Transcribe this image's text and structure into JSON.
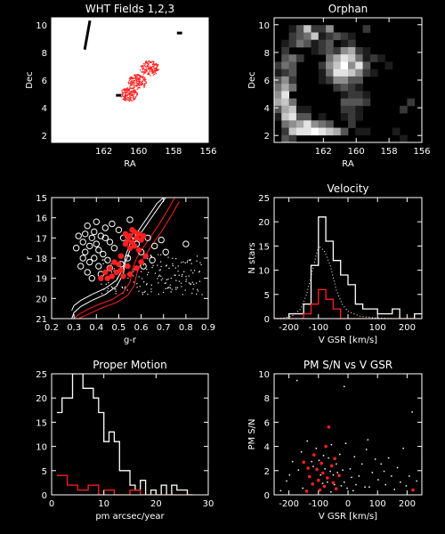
{
  "colors": {
    "bg": "#000000",
    "fg": "#ffffff",
    "accent": "#ff2020",
    "panel_bg": "#ffffff"
  },
  "chart_data": [
    {
      "id": "wht-fields",
      "type": "scatter",
      "title": "WHT Fields 1,2,3",
      "xlabel": "RA",
      "ylabel": "Dec",
      "xlim": [
        165,
        156
      ],
      "ylim": [
        1.5,
        10.5
      ],
      "xticks": [
        162,
        160,
        158,
        156
      ],
      "yticks": [
        2,
        4,
        6,
        8,
        10
      ],
      "panel": "white",
      "black_streaks": [
        [
          163.1,
          8.2,
          162.8,
          10.3
        ],
        [
          157.8,
          9.4,
          157.5,
          9.4
        ],
        [
          161.3,
          4.9,
          161.0,
          4.9
        ]
      ],
      "fields": [
        {
          "ra": 160.6,
          "dec": 5.0,
          "r": 0.5
        },
        {
          "ra": 160.1,
          "dec": 5.9,
          "r": 0.55
        },
        {
          "ra": 159.4,
          "dec": 6.9,
          "r": 0.55
        }
      ]
    },
    {
      "id": "orphan",
      "type": "heatmap",
      "title": "Orphan",
      "xlabel": "RA",
      "ylabel": "Dec",
      "xlim": [
        165,
        156
      ],
      "ylim": [
        1.5,
        10.5
      ],
      "xticks": [
        162,
        160,
        158,
        156
      ],
      "yticks": [
        2,
        4,
        6,
        8,
        10
      ],
      "rows": 17,
      "cols": 20,
      "grid": [
        "00000000000000000000",
        "00137225000020000000",
        "00234712321000000000",
        "01243123012000000000",
        "02000123256210000000",
        "03420004687412100000",
        "24300025795830010000",
        "12300014887521000000",
        "35200012553300000000",
        "46400000232100000000",
        "58000000012210000000",
        "67400000033320000020",
        "36711000022100000200",
        "17833010012100000000",
        "04568543002000000000",
        "02788987630110001000",
        "03200000000000000100"
      ]
    },
    {
      "id": "cmd",
      "type": "scatter",
      "xlabel": "g-r",
      "ylabel": "r",
      "xlim": [
        0.2,
        0.9
      ],
      "ylim": [
        21,
        15
      ],
      "xticks": [
        0.2,
        0.3,
        0.4,
        0.5,
        0.6,
        0.7,
        0.8,
        0.9
      ],
      "xticklabels": [
        "0.2",
        "0.3",
        "0.4",
        "0.5",
        "0.6",
        "0.7",
        "0.8",
        "0.9"
      ],
      "yticks": [
        15,
        16,
        17,
        18,
        19,
        20,
        21
      ],
      "white_tracks": [
        [
          [
            0.29,
            21.0
          ],
          [
            0.3,
            20.7
          ],
          [
            0.33,
            20.4
          ],
          [
            0.38,
            20.1
          ],
          [
            0.44,
            19.8
          ],
          [
            0.49,
            19.4
          ],
          [
            0.52,
            18.8
          ],
          [
            0.53,
            18.2
          ],
          [
            0.55,
            17.6
          ],
          [
            0.59,
            16.9
          ],
          [
            0.64,
            16.1
          ],
          [
            0.69,
            15.3
          ],
          [
            0.71,
            15.0
          ]
        ],
        [
          [
            0.29,
            20.6
          ],
          [
            0.3,
            20.35
          ],
          [
            0.33,
            20.1
          ],
          [
            0.38,
            19.8
          ],
          [
            0.44,
            19.5
          ],
          [
            0.49,
            19.1
          ],
          [
            0.52,
            18.5
          ],
          [
            0.53,
            17.9
          ],
          [
            0.55,
            17.3
          ],
          [
            0.59,
            16.6
          ],
          [
            0.64,
            15.8
          ],
          [
            0.67,
            15.3
          ],
          [
            0.7,
            15.0
          ]
        ]
      ],
      "red_tracks": [
        [
          [
            0.3,
            21.0
          ],
          [
            0.32,
            20.8
          ],
          [
            0.36,
            20.55
          ],
          [
            0.41,
            20.3
          ],
          [
            0.47,
            20.05
          ],
          [
            0.52,
            19.7
          ],
          [
            0.55,
            19.2
          ],
          [
            0.56,
            18.6
          ],
          [
            0.58,
            18.0
          ],
          [
            0.62,
            17.3
          ],
          [
            0.67,
            16.5
          ],
          [
            0.72,
            15.6
          ],
          [
            0.75,
            15.0
          ]
        ],
        [
          [
            0.32,
            21.0
          ],
          [
            0.34,
            20.9
          ],
          [
            0.38,
            20.7
          ],
          [
            0.43,
            20.45
          ],
          [
            0.49,
            20.2
          ],
          [
            0.54,
            19.85
          ],
          [
            0.57,
            19.35
          ],
          [
            0.58,
            18.8
          ],
          [
            0.6,
            18.2
          ],
          [
            0.64,
            17.5
          ],
          [
            0.69,
            16.7
          ],
          [
            0.74,
            15.8
          ],
          [
            0.77,
            15.2
          ]
        ]
      ],
      "open_circles": [
        [
          0.32,
          16.9
        ],
        [
          0.34,
          17.2
        ],
        [
          0.35,
          16.8
        ],
        [
          0.37,
          17.4
        ],
        [
          0.38,
          17.0
        ],
        [
          0.39,
          16.7
        ],
        [
          0.4,
          17.3
        ],
        [
          0.41,
          17.6
        ],
        [
          0.42,
          16.9
        ],
        [
          0.35,
          17.7
        ],
        [
          0.37,
          18.2
        ],
        [
          0.39,
          18.0
        ],
        [
          0.41,
          18.4
        ],
        [
          0.43,
          17.8
        ],
        [
          0.44,
          16.5
        ],
        [
          0.46,
          17.2
        ],
        [
          0.47,
          16.3
        ],
        [
          0.33,
          18.4
        ],
        [
          0.36,
          18.7
        ],
        [
          0.31,
          17.5
        ],
        [
          0.42,
          18.8
        ],
        [
          0.45,
          18.1
        ],
        [
          0.48,
          17.5
        ],
        [
          0.5,
          16.6
        ],
        [
          0.52,
          17.0
        ],
        [
          0.55,
          16.1
        ],
        [
          0.57,
          16.9
        ],
        [
          0.6,
          17.7
        ],
        [
          0.63,
          17.0
        ],
        [
          0.66,
          17.4
        ],
        [
          0.69,
          17.1
        ],
        [
          0.71,
          17.7
        ],
        [
          0.65,
          18.1
        ],
        [
          0.61,
          18.4
        ],
        [
          0.58,
          17.3
        ],
        [
          0.54,
          18.0
        ],
        [
          0.51,
          18.3
        ],
        [
          0.36,
          16.4
        ],
        [
          0.4,
          16.2
        ],
        [
          0.44,
          17.0
        ],
        [
          0.46,
          18.5
        ],
        [
          0.38,
          19.0
        ],
        [
          0.34,
          18.0
        ],
        [
          0.8,
          17.3
        ]
      ],
      "red_points": [
        [
          0.53,
          16.8
        ],
        [
          0.54,
          17.1
        ],
        [
          0.55,
          16.9
        ],
        [
          0.56,
          17.2
        ],
        [
          0.57,
          16.7
        ],
        [
          0.58,
          17.0
        ],
        [
          0.59,
          16.8
        ],
        [
          0.6,
          17.1
        ],
        [
          0.61,
          16.9
        ],
        [
          0.57,
          17.4
        ],
        [
          0.55,
          17.5
        ],
        [
          0.53,
          17.3
        ],
        [
          0.56,
          16.6
        ],
        [
          0.5,
          18.3
        ],
        [
          0.51,
          18.6
        ],
        [
          0.52,
          18.9
        ],
        [
          0.49,
          18.7
        ],
        [
          0.47,
          18.9
        ],
        [
          0.45,
          19.0
        ],
        [
          0.44,
          18.7
        ],
        [
          0.46,
          18.5
        ],
        [
          0.48,
          18.2
        ],
        [
          0.54,
          18.4
        ],
        [
          0.55,
          18.8
        ],
        [
          0.58,
          18.5
        ],
        [
          0.6,
          18.2
        ],
        [
          0.62,
          17.9
        ],
        [
          0.42,
          19.0
        ],
        [
          0.51,
          17.9
        ],
        [
          0.59,
          17.6
        ]
      ],
      "dot_count": 180
    },
    {
      "id": "velocity",
      "type": "line",
      "title": "Velocity",
      "xlabel": "V GSR [km/s]",
      "ylabel": "N stars",
      "xlim": [
        -250,
        250
      ],
      "ylim": [
        0,
        25
      ],
      "xticks": [
        -200,
        -100,
        0,
        100,
        200
      ],
      "yticks": [
        0,
        5,
        10,
        15,
        20,
        25
      ],
      "bin_edges": [
        -250,
        -225,
        -200,
        -175,
        -150,
        -125,
        -100,
        -75,
        -50,
        -25,
        0,
        25,
        50,
        75,
        100,
        125,
        150,
        175,
        200,
        225,
        250
      ],
      "series": [
        {
          "values": [
            0,
            0,
            1,
            1,
            3,
            11,
            21,
            16,
            12,
            9,
            7,
            3,
            2,
            2,
            1,
            1,
            2,
            0,
            0,
            1
          ],
          "color": "#ffffff",
          "style": "step"
        },
        {
          "values": [
            0,
            0,
            0,
            0,
            1,
            3,
            6,
            4,
            2,
            0,
            0,
            0,
            0,
            0,
            0,
            0,
            0,
            0,
            0,
            0
          ],
          "color": "#ff2020",
          "style": "step"
        },
        {
          "x": [
            -250,
            -220,
            -190,
            -160,
            -140,
            -120,
            -100,
            -80,
            -60,
            -40,
            -20,
            0,
            40,
            80,
            120,
            160,
            200,
            250
          ],
          "y": [
            0,
            0.1,
            0.5,
            2,
            5,
            10,
            15,
            14,
            11,
            6,
            3,
            1.5,
            0.5,
            0.2,
            0.1,
            0,
            0,
            0
          ],
          "color": "#ffffff",
          "style": "dotted"
        }
      ]
    },
    {
      "id": "proper-motion",
      "type": "line",
      "title": "Proper Motion",
      "xlabel": "pm arcsec/year",
      "ylabel": "",
      "xlim": [
        0,
        30
      ],
      "ylim": [
        0,
        25
      ],
      "xticks": [
        0,
        10,
        20,
        30
      ],
      "yticks": [
        0,
        5,
        10,
        15,
        20,
        25
      ],
      "bin_edges": [
        1,
        2,
        3,
        4,
        5,
        6,
        7,
        8,
        9,
        10,
        11,
        12,
        13,
        14,
        15,
        16,
        17,
        18,
        19,
        20,
        21,
        22,
        23,
        24,
        25,
        26,
        27
      ],
      "series": [
        {
          "values": [
            17,
            20,
            20,
            25,
            25,
            22,
            22,
            20,
            17,
            11,
            13,
            11,
            5,
            5,
            2,
            1,
            3,
            0,
            1,
            0,
            2,
            0,
            2,
            1,
            1,
            0
          ],
          "color": "#ffffff",
          "style": "step"
        },
        {
          "values": [
            4,
            4,
            2,
            2,
            1,
            1,
            2,
            2,
            0,
            1,
            1,
            0,
            0,
            0,
            1,
            1,
            0,
            0,
            0,
            0,
            0,
            0,
            0,
            0,
            0,
            0
          ],
          "color": "#ff2020",
          "style": "step"
        }
      ]
    },
    {
      "id": "pm-sn",
      "type": "scatter",
      "title": "PM S/N vs V GSR",
      "xlabel": "V GSR [km/s]",
      "ylabel": "PM S/N",
      "xlim": [
        -250,
        250
      ],
      "ylim": [
        0,
        10
      ],
      "xticks": [
        -200,
        -100,
        0,
        100,
        200
      ],
      "yticks": [
        0,
        2,
        4,
        6,
        8,
        10
      ],
      "red_points": [
        [
          -150,
          2.7
        ],
        [
          -135,
          2.2
        ],
        [
          -130,
          1.5
        ],
        [
          -120,
          0.9
        ],
        [
          -115,
          3.3
        ],
        [
          -105,
          2.1
        ],
        [
          -100,
          1.2
        ],
        [
          -95,
          0.4
        ],
        [
          -90,
          2.6
        ],
        [
          -85,
          1.8
        ],
        [
          -80,
          0.7
        ],
        [
          -75,
          4.0
        ],
        [
          -70,
          1.4
        ],
        [
          -65,
          5.6
        ],
        [
          -55,
          2.4
        ],
        [
          -50,
          1.0
        ],
        [
          -45,
          3.0
        ],
        [
          -40,
          0.5
        ],
        [
          -30,
          1.6
        ],
        [
          -140,
          0.3
        ],
        [
          220,
          0.4
        ]
      ],
      "white_points": [
        [
          -230,
          0.4
        ],
        [
          -210,
          1.2
        ],
        [
          -190,
          2.8
        ],
        [
          -175,
          9.5
        ],
        [
          -170,
          2.1
        ],
        [
          -160,
          3.6
        ],
        [
          -155,
          0.6
        ],
        [
          -140,
          4.5
        ],
        [
          -125,
          2.8
        ],
        [
          -110,
          3.9
        ],
        [
          -100,
          2.9
        ],
        [
          -95,
          1.7
        ],
        [
          -85,
          3.3
        ],
        [
          -80,
          2.2
        ],
        [
          -72,
          1.1
        ],
        [
          -68,
          3.1
        ],
        [
          -62,
          2.0
        ],
        [
          -58,
          4.2
        ],
        [
          -52,
          1.7
        ],
        [
          -48,
          0.9
        ],
        [
          -42,
          2.6
        ],
        [
          -38,
          1.9
        ],
        [
          -30,
          3.4
        ],
        [
          -25,
          0.8
        ],
        [
          -20,
          2.1
        ],
        [
          -15,
          1.1
        ],
        [
          -10,
          4.3
        ],
        [
          -5,
          0.6
        ],
        [
          5,
          2.2
        ],
        [
          10,
          1.5
        ],
        [
          20,
          3.2
        ],
        [
          25,
          0.9
        ],
        [
          35,
          1.6
        ],
        [
          45,
          2.6
        ],
        [
          55,
          0.7
        ],
        [
          65,
          4.6
        ],
        [
          70,
          0.7
        ],
        [
          80,
          1.9
        ],
        [
          90,
          3.0
        ],
        [
          100,
          1.3
        ],
        [
          110,
          2.6
        ],
        [
          125,
          0.9
        ],
        [
          135,
          3.1
        ],
        [
          145,
          1.6
        ],
        [
          155,
          0.5
        ],
        [
          165,
          2.3
        ],
        [
          175,
          1.1
        ],
        [
          185,
          3.9
        ],
        [
          195,
          0.8
        ],
        [
          205,
          1.6
        ],
        [
          215,
          6.9
        ],
        [
          230,
          1.2
        ],
        [
          -15,
          9.0
        ],
        [
          -200,
          1.7
        ],
        [
          -120,
          2.4
        ],
        [
          -88,
          1.0
        ],
        [
          -60,
          0.3
        ],
        [
          15,
          0.4
        ],
        [
          60,
          3.8
        ],
        [
          120,
          2.0
        ]
      ]
    }
  ]
}
